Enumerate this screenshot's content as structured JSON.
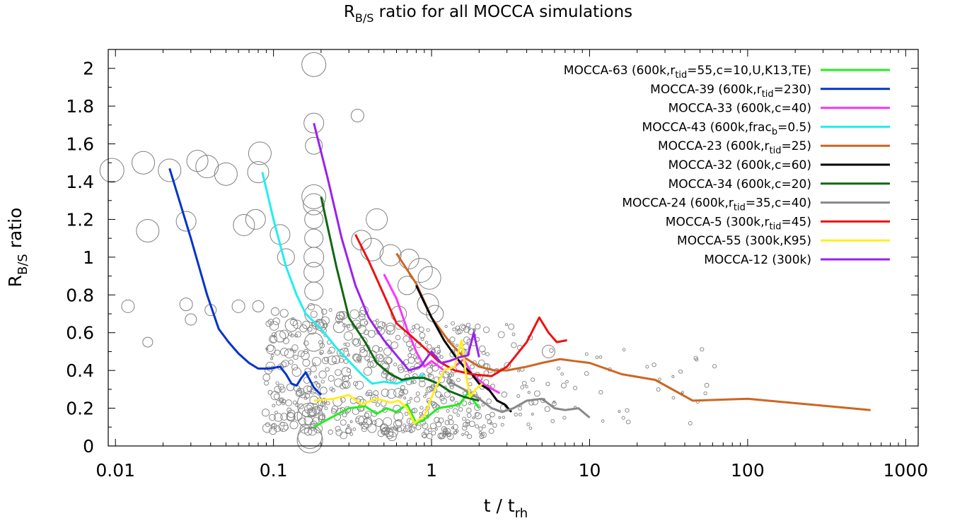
{
  "chart_data": {
    "type": "line",
    "title": {
      "main": "R",
      "sub": "B/S",
      "rest": " ratio for all MOCCA simulations"
    },
    "xlabel": {
      "main": "t / t",
      "sub": "rh",
      "rest": ""
    },
    "ylabel": {
      "main": "R",
      "sub": "B/S",
      "rest": " ratio"
    },
    "x_scale": "log",
    "xlim": [
      0.009,
      1200
    ],
    "ylim": [
      0,
      2.1
    ],
    "x_ticks": [
      {
        "value": 0.01,
        "label": "0.01"
      },
      {
        "value": 0.1,
        "label": "0.1"
      },
      {
        "value": 1,
        "label": "1"
      },
      {
        "value": 10,
        "label": "10"
      },
      {
        "value": 100,
        "label": "100"
      },
      {
        "value": 1000,
        "label": "1000"
      }
    ],
    "y_ticks": [
      {
        "value": 0,
        "label": "0"
      },
      {
        "value": 0.2,
        "label": "0.2"
      },
      {
        "value": 0.4,
        "label": "0.4"
      },
      {
        "value": 0.6,
        "label": "0.6"
      },
      {
        "value": 0.8,
        "label": "0.8"
      },
      {
        "value": 1,
        "label": "1"
      },
      {
        "value": 1.2,
        "label": "1.2"
      },
      {
        "value": 1.4,
        "label": "1.4"
      },
      {
        "value": 1.6,
        "label": "1.6"
      },
      {
        "value": 1.8,
        "label": "1.8"
      },
      {
        "value": 2,
        "label": "2"
      }
    ],
    "grid": false,
    "legend_position": "top-right",
    "marker_color": "#808080",
    "series": [
      {
        "name": "MOCCA-63 (600k,r_tid=55,c=10,U,K13,TE)",
        "label": {
          "main": "MOCCA-63 (600k,r",
          "sub": "tid",
          "rest": "=55,c=10,U,K13,TE)"
        },
        "color": "#22ee22",
        "x": [
          0.18,
          0.22,
          0.3,
          0.38,
          0.45,
          0.52,
          0.6,
          0.7,
          0.8,
          0.9,
          1.1,
          1.3,
          1.5,
          1.7,
          2.0
        ],
        "y": [
          0.1,
          0.14,
          0.2,
          0.21,
          0.17,
          0.2,
          0.18,
          0.22,
          0.12,
          0.14,
          0.2,
          0.21,
          0.22,
          0.28,
          0.2
        ]
      },
      {
        "name": "MOCCA-39 (600k,r_tid=230)",
        "label": {
          "main": "MOCCA-39 (600k,r",
          "sub": "tid",
          "rest": "=230)"
        },
        "color": "#0033cc",
        "x": [
          0.022,
          0.03,
          0.038,
          0.045,
          0.052,
          0.06,
          0.07,
          0.08,
          0.095,
          0.11,
          0.12,
          0.13,
          0.14,
          0.15,
          0.16,
          0.18,
          0.2
        ],
        "y": [
          1.47,
          1.1,
          0.8,
          0.62,
          0.55,
          0.49,
          0.44,
          0.41,
          0.41,
          0.42,
          0.38,
          0.33,
          0.32,
          0.36,
          0.39,
          0.31,
          0.27
        ]
      },
      {
        "name": "MOCCA-33 (600k,c=40)",
        "label": {
          "main": "MOCCA-33 (600k,c=40)",
          "sub": "",
          "rest": ""
        },
        "color": "#ff33ff",
        "x": [
          0.5,
          0.6,
          0.7,
          0.8,
          0.9,
          1.0,
          1.2,
          1.4,
          1.6,
          1.8,
          2.2,
          2.7
        ],
        "y": [
          0.91,
          0.78,
          0.62,
          0.5,
          0.42,
          0.45,
          0.4,
          0.42,
          0.46,
          0.38,
          0.32,
          0.28
        ]
      },
      {
        "name": "MOCCA-43 (600k,frac_b=0.5)",
        "label": {
          "main": "MOCCA-43 (600k,frac",
          "sub": "b",
          "rest": "=0.5)"
        },
        "color": "#22eeee",
        "x": [
          0.085,
          0.1,
          0.12,
          0.14,
          0.16,
          0.2,
          0.25,
          0.3,
          0.36,
          0.42,
          0.5,
          0.6,
          0.7,
          0.8,
          0.9
        ],
        "y": [
          1.45,
          1.2,
          0.95,
          0.8,
          0.7,
          0.62,
          0.52,
          0.45,
          0.38,
          0.33,
          0.34,
          0.33,
          0.35,
          0.36,
          0.38
        ]
      },
      {
        "name": "MOCCA-23 (600k,r_tid=25)",
        "label": {
          "main": "MOCCA-23 (600k,r",
          "sub": "tid",
          "rest": "=25)"
        },
        "color": "#cc6622",
        "x": [
          0.6,
          0.8,
          1.0,
          1.3,
          1.6,
          2.0,
          2.5,
          3.0,
          4.0,
          5.0,
          6.5,
          8.0,
          10.0,
          16.0,
          26.0,
          45.0,
          100.0,
          600.0
        ],
        "y": [
          1.02,
          0.86,
          0.68,
          0.55,
          0.47,
          0.42,
          0.4,
          0.4,
          0.42,
          0.44,
          0.46,
          0.45,
          0.44,
          0.38,
          0.35,
          0.24,
          0.25,
          0.19
        ]
      },
      {
        "name": "MOCCA-32 (600k,c=60)",
        "label": {
          "main": "MOCCA-32 (600k,c=60)",
          "sub": "",
          "rest": ""
        },
        "color": "#000000",
        "x": [
          0.8,
          0.9,
          1.0,
          1.2,
          1.4,
          1.6,
          1.8,
          2.0,
          2.3,
          2.6,
          2.9,
          3.2
        ],
        "y": [
          0.85,
          0.76,
          0.68,
          0.56,
          0.48,
          0.42,
          0.38,
          0.33,
          0.3,
          0.24,
          0.22,
          0.18
        ]
      },
      {
        "name": "MOCCA-34 (600k,c=20)",
        "label": {
          "main": "MOCCA-34 (600k,c=20)",
          "sub": "",
          "rest": ""
        },
        "color": "#116611",
        "x": [
          0.2,
          0.25,
          0.3,
          0.38,
          0.45,
          0.55,
          0.65,
          0.75,
          0.9,
          1.1,
          1.3,
          1.6,
          2.0
        ],
        "y": [
          1.32,
          0.95,
          0.68,
          0.55,
          0.44,
          0.38,
          0.35,
          0.36,
          0.36,
          0.33,
          0.29,
          0.26,
          0.24
        ]
      },
      {
        "name": "MOCCA-24 (600k,r_tid=35,c=40)",
        "label": {
          "main": "MOCCA-24 (600k,r",
          "sub": "tid",
          "rest": "=35,c=40)"
        },
        "color": "#888888",
        "x": [
          1.3,
          1.6,
          2.0,
          2.4,
          2.8,
          3.3,
          4.0,
          5.0,
          6.0,
          7.0,
          8.5,
          10.0
        ],
        "y": [
          0.34,
          0.3,
          0.25,
          0.2,
          0.18,
          0.2,
          0.24,
          0.25,
          0.2,
          0.19,
          0.2,
          0.15
        ]
      },
      {
        "name": "MOCCA-5 (300k,r_tid=45)",
        "label": {
          "main": "MOCCA-5 (300k,r",
          "sub": "tid",
          "rest": "=45)"
        },
        "color": "#ee1111",
        "x": [
          0.33,
          0.4,
          0.5,
          0.6,
          0.75,
          0.9,
          1.1,
          1.4,
          1.8,
          2.4,
          3.0,
          4.0,
          4.8,
          5.5,
          6.2,
          7.2
        ],
        "y": [
          1.12,
          0.98,
          0.8,
          0.65,
          0.58,
          0.52,
          0.45,
          0.4,
          0.38,
          0.37,
          0.42,
          0.55,
          0.68,
          0.6,
          0.55,
          0.56
        ]
      },
      {
        "name": "MOCCA-55 (300k,K95)",
        "label": {
          "main": "MOCCA-55 (300k,K95)",
          "sub": "",
          "rest": ""
        },
        "color": "#ffee22",
        "x": [
          0.18,
          0.24,
          0.3,
          0.36,
          0.45,
          0.55,
          0.62,
          0.7,
          0.78,
          0.9,
          1.05,
          1.2,
          1.4,
          1.55,
          1.65,
          1.75,
          1.9,
          2.1
        ],
        "y": [
          0.24,
          0.25,
          0.27,
          0.22,
          0.25,
          0.23,
          0.24,
          0.2,
          0.12,
          0.16,
          0.3,
          0.4,
          0.42,
          0.56,
          0.38,
          0.26,
          0.3,
          0.33
        ]
      },
      {
        "name": "MOCCA-12 (300k)",
        "label": {
          "main": "MOCCA-12 (300k)",
          "sub": "",
          "rest": ""
        },
        "color": "#9922ee",
        "x": [
          0.18,
          0.22,
          0.27,
          0.33,
          0.4,
          0.5,
          0.6,
          0.72,
          0.85,
          1.0,
          1.15,
          1.3,
          1.5,
          1.7,
          1.85,
          2.0
        ],
        "y": [
          1.71,
          1.42,
          1.1,
          0.85,
          0.68,
          0.56,
          0.48,
          0.4,
          0.42,
          0.5,
          0.44,
          0.45,
          0.47,
          0.48,
          0.6,
          0.47
        ]
      }
    ]
  }
}
